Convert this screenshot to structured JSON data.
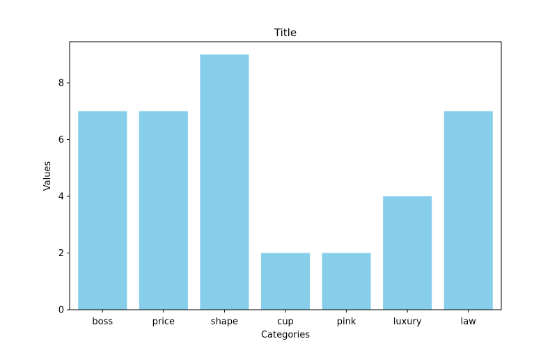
{
  "chart_data": {
    "type": "bar",
    "title": "Title",
    "xlabel": "Categories",
    "ylabel": "Values",
    "categories": [
      "boss",
      "price",
      "shape",
      "cup",
      "pink",
      "luxury",
      "law"
    ],
    "values": [
      7,
      7,
      9,
      2,
      2,
      4,
      7
    ],
    "yticks": [
      0,
      2,
      4,
      6,
      8
    ],
    "ylim": [
      0,
      9.45
    ],
    "grid": false,
    "bar_color": "#87ceeb"
  }
}
